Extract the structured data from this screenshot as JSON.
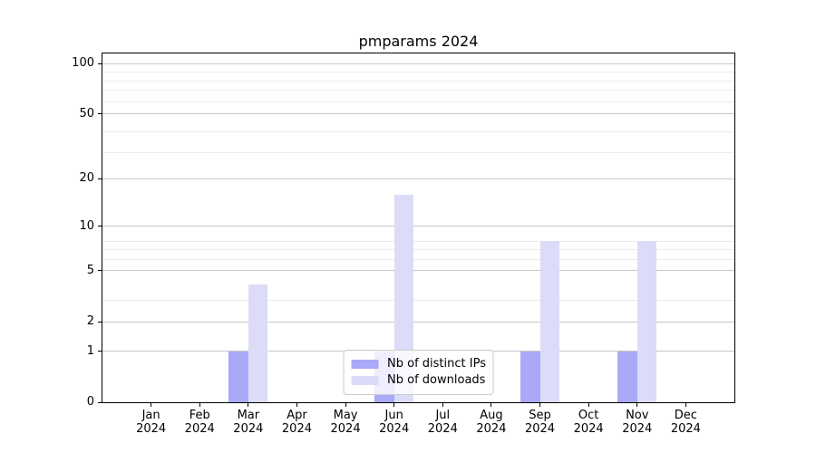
{
  "title": "pmparams 2024",
  "colors": {
    "bar_distinct_ips": "#a9a9f7",
    "bar_downloads": "#dcdcf8",
    "grid_major": "#c8c8c8",
    "grid_minor": "#ececec",
    "spine": "#000000",
    "legend_border": "#cccccc",
    "background": "#ffffff"
  },
  "y_axis": {
    "tick_labels": [
      "0",
      "1",
      "2",
      "5",
      "10",
      "20",
      "50",
      "100"
    ]
  },
  "x_axis": {
    "month_labels": [
      "Jan",
      "Feb",
      "Mar",
      "Apr",
      "May",
      "Jun",
      "Jul",
      "Aug",
      "Sep",
      "Oct",
      "Nov",
      "Dec"
    ],
    "year_label": "2024"
  },
  "legend": {
    "entries": [
      {
        "label": "Nb of distinct IPs",
        "color": "#a9a9f7"
      },
      {
        "label": "Nb of downloads",
        "color": "#dcdcf8"
      }
    ]
  },
  "chart_data": {
    "type": "bar",
    "title": "pmparams 2024",
    "categories": [
      "Jan 2024",
      "Feb 2024",
      "Mar 2024",
      "Apr 2024",
      "May 2024",
      "Jun 2024",
      "Jul 2024",
      "Aug 2024",
      "Sep 2024",
      "Oct 2024",
      "Nov 2024",
      "Dec 2024"
    ],
    "series": [
      {
        "name": "Nb of distinct IPs",
        "color": "#a9a9f7",
        "values": [
          0,
          0,
          1,
          0,
          0,
          1,
          0,
          0,
          1,
          0,
          1,
          0
        ]
      },
      {
        "name": "Nb of downloads",
        "color": "#dcdcf8",
        "values": [
          0,
          0,
          4,
          0,
          0,
          16,
          0,
          0,
          8,
          0,
          8,
          0
        ]
      }
    ],
    "yscale": "log1p",
    "ylim": [
      0,
      115
    ],
    "y_major_ticks": [
      0,
      1,
      2,
      5,
      10,
      20,
      50,
      100
    ],
    "y_minor_ticks": [
      2,
      3,
      5,
      6,
      7,
      8,
      29,
      39,
      59,
      69,
      79,
      89
    ],
    "xlabel": "",
    "ylabel": "",
    "grid": true,
    "legend_position": "lower center"
  }
}
